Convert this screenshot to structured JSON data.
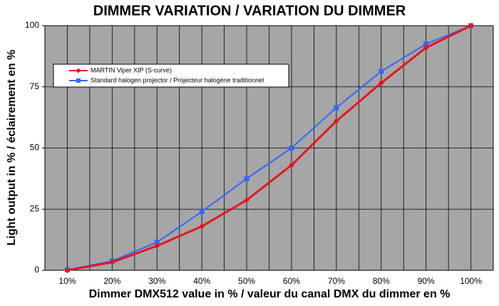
{
  "chart_data": {
    "type": "line",
    "title": "DIMMER VARIATION / VARIATION DU DIMMER",
    "x_label": "Dimmer DMX512 value in % / valeur du canal DMX du dimmer en %",
    "y_label": "Light output in % / éclairement en %",
    "categories": [
      "10%",
      "20%",
      "30%",
      "40%",
      "50%",
      "60%",
      "70%",
      "80%",
      "90%",
      "100%"
    ],
    "series": [
      {
        "name": "MARTIN Viper XIP (S-curve)",
        "color": "#e8141b",
        "marker": "diamond",
        "values": [
          0,
          3.3,
          10,
          18,
          28.7,
          43,
          61,
          76.6,
          91,
          100
        ]
      },
      {
        "name": "Standard halogen projector / Projecteur halogène traditionnel",
        "color": "#3366ff",
        "marker": "square",
        "values": [
          0.2,
          3.8,
          11.5,
          24,
          37.5,
          50,
          66.5,
          81.3,
          92.5,
          100
        ]
      }
    ],
    "ylim": [
      0,
      100
    ],
    "yticks": [
      0,
      25,
      50,
      75,
      100
    ],
    "grid": true,
    "legend": "upper left"
  }
}
